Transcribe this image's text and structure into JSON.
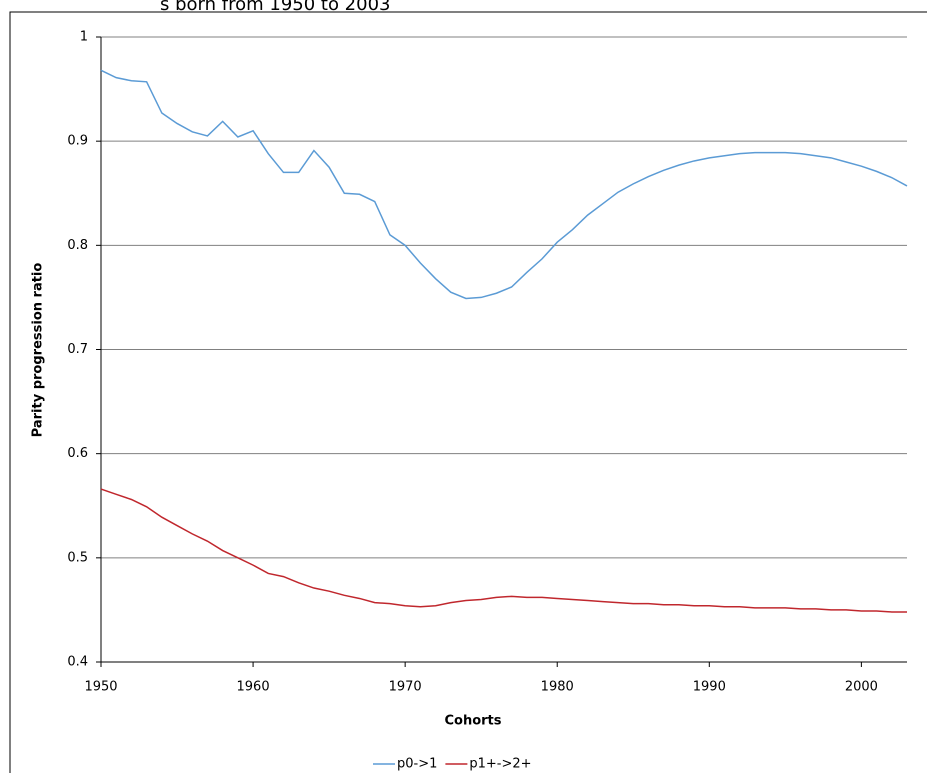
{
  "chart_data": {
    "type": "line",
    "title": "s born from 1950 to 2003",
    "x_label": "Cohorts",
    "y_label": "Parity progression ratio",
    "x": [
      1950,
      1951,
      1952,
      1953,
      1954,
      1955,
      1956,
      1957,
      1958,
      1959,
      1960,
      1961,
      1962,
      1963,
      1964,
      1965,
      1966,
      1967,
      1968,
      1969,
      1970,
      1971,
      1972,
      1973,
      1974,
      1975,
      1976,
      1977,
      1978,
      1979,
      1980,
      1981,
      1982,
      1983,
      1984,
      1985,
      1986,
      1987,
      1988,
      1989,
      1990,
      1991,
      1992,
      1993,
      1994,
      1995,
      1996,
      1997,
      1998,
      1999,
      2000,
      2001,
      2002,
      2003
    ],
    "series": [
      {
        "name": "p0->1",
        "color": "#5b9bd5",
        "values": [
          0.968,
          0.961,
          0.958,
          0.957,
          0.927,
          0.917,
          0.909,
          0.905,
          0.919,
          0.904,
          0.91,
          0.888,
          0.87,
          0.87,
          0.891,
          0.875,
          0.85,
          0.849,
          0.842,
          0.81,
          0.8,
          0.783,
          0.768,
          0.755,
          0.749,
          0.75,
          0.754,
          0.76,
          0.774,
          0.787,
          0.803,
          0.815,
          0.829,
          0.84,
          0.851,
          0.859,
          0.866,
          0.872,
          0.877,
          0.881,
          0.884,
          0.886,
          0.888,
          0.889,
          0.889,
          0.889,
          0.888,
          0.886,
          0.884,
          0.88,
          0.876,
          0.871,
          0.865,
          0.857
        ]
      },
      {
        "name": "p1+->2+",
        "color": "#c0272d",
        "values": [
          0.566,
          0.561,
          0.556,
          0.549,
          0.539,
          0.531,
          0.523,
          0.516,
          0.507,
          0.5,
          0.493,
          0.485,
          0.482,
          0.476,
          0.471,
          0.468,
          0.464,
          0.461,
          0.457,
          0.456,
          0.454,
          0.453,
          0.454,
          0.457,
          0.459,
          0.46,
          0.462,
          0.463,
          0.462,
          0.462,
          0.461,
          0.46,
          0.459,
          0.458,
          0.457,
          0.456,
          0.456,
          0.455,
          0.455,
          0.454,
          0.454,
          0.453,
          0.453,
          0.452,
          0.452,
          0.452,
          0.451,
          0.451,
          0.45,
          0.45,
          0.449,
          0.449,
          0.448,
          0.448
        ]
      }
    ],
    "xlim": [
      1950,
      2003
    ],
    "xticks": [
      1950,
      1960,
      1970,
      1980,
      1990,
      2000
    ],
    "ylim": [
      0.4,
      1
    ],
    "yticks": [
      0.4,
      0.5,
      0.6,
      0.7,
      0.8,
      0.9,
      1
    ],
    "grid": true,
    "legend": "bottom"
  }
}
